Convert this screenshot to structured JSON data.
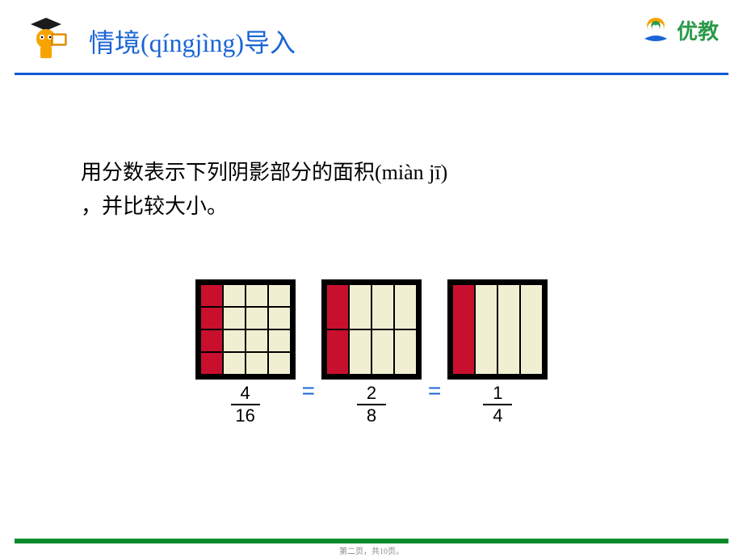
{
  "header": {
    "title": "情境(qíngjìng)导入",
    "logo_text": "优教",
    "title_color": "#1a64d6",
    "logo_text_color": "#2a9a4a"
  },
  "instruction": {
    "line1": "用分数表示下列阴影部分的面积(miàn jī)",
    "line2": "，并比较大小。"
  },
  "figures": {
    "box_outer_color": "#000000",
    "box_inner_bg": "#f1efd1",
    "shade_color": "#c8102e",
    "grid_line_color": "#000000",
    "panels": [
      {
        "rows": 4,
        "cols": 4,
        "shaded_col_count": 1,
        "frac_num": "4",
        "frac_den": "16"
      },
      {
        "rows": 2,
        "cols": 4,
        "shaded_col_count": 1,
        "frac_num": "2",
        "frac_den": "8"
      },
      {
        "rows": 1,
        "cols": 4,
        "shaded_col_count": 1,
        "frac_num": "1",
        "frac_den": "4"
      }
    ],
    "eq_symbol": "=",
    "eq_color": "#1a64d6"
  },
  "footer": {
    "page_note": "第二页，共10页。",
    "bar_color": "#0a8a2a"
  },
  "rule_color": "#0a5bd6"
}
